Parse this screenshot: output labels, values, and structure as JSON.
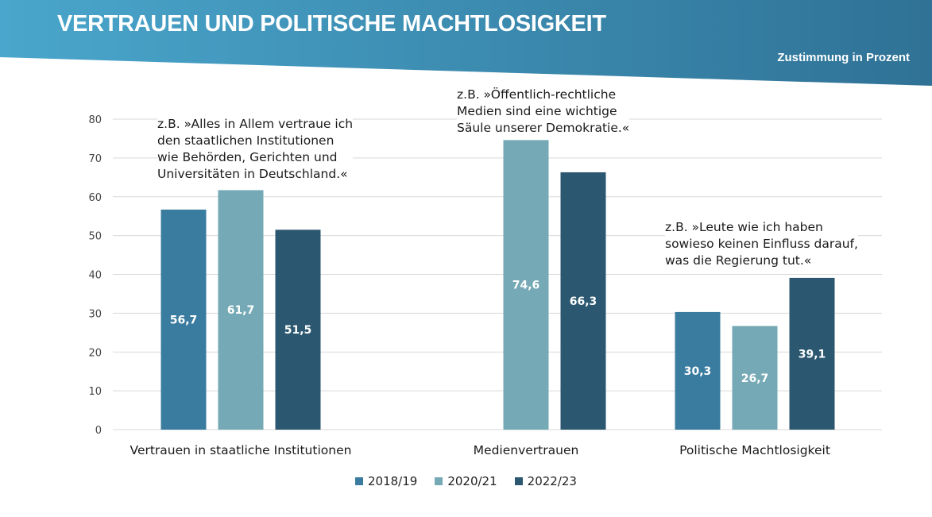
{
  "header": {
    "title": "VERTRAUEN UND POLITISCHE MACHTLOSIGKEIT",
    "subtitle": "Zustimmung in Prozent"
  },
  "colors": {
    "banner_dark": "#2f7296",
    "banner_light": "#4aa6cc",
    "series_2018": "#3a7ca0",
    "series_2020": "#74a9b5",
    "series_2022": "#2b5870",
    "grid": "#d9d9d9",
    "value_label": "#ffffff"
  },
  "annotations": [
    {
      "lines": [
        "z.B. »Alles in Allem vertraue ich",
        "den staatlichen Institutionen",
        "wie Behörden, Gerichten und",
        "Universitäten in Deutschland.«"
      ]
    },
    {
      "lines": [
        "z.B. »Öffentlich-rechtliche",
        "Medien sind eine wichtige",
        "Säule unserer Demokratie.«"
      ]
    },
    {
      "lines": [
        "z.B. »Leute wie ich haben",
        "sowieso keinen Einfluss darauf,",
        "was die Regierung tut.«"
      ]
    }
  ],
  "chart_data": {
    "type": "bar",
    "title": "VERTRAUEN UND POLITISCHE MACHTLOSIGKEIT",
    "ylabel": "Zustimmung in Prozent",
    "categories": [
      "Vertrauen in staatliche Institutionen",
      "Medienvertrauen",
      "Politische Machtlosigkeit"
    ],
    "series": [
      {
        "name": "2018/19",
        "values": [
          56.7,
          null,
          30.3
        ],
        "labels": [
          "56,7",
          "",
          "30,3"
        ]
      },
      {
        "name": "2020/21",
        "values": [
          61.7,
          74.6,
          26.7
        ],
        "labels": [
          "61,7",
          "74,6",
          "26,7"
        ]
      },
      {
        "name": "2022/23",
        "values": [
          51.5,
          66.3,
          39.1
        ],
        "labels": [
          "51,5",
          "66,3",
          "39,1"
        ]
      }
    ],
    "yticks": [
      "0",
      "10",
      "20",
      "30",
      "40",
      "50",
      "60",
      "70",
      "80"
    ],
    "ylim": [
      0,
      80
    ],
    "grid": true,
    "legend_position": "bottom-center"
  }
}
